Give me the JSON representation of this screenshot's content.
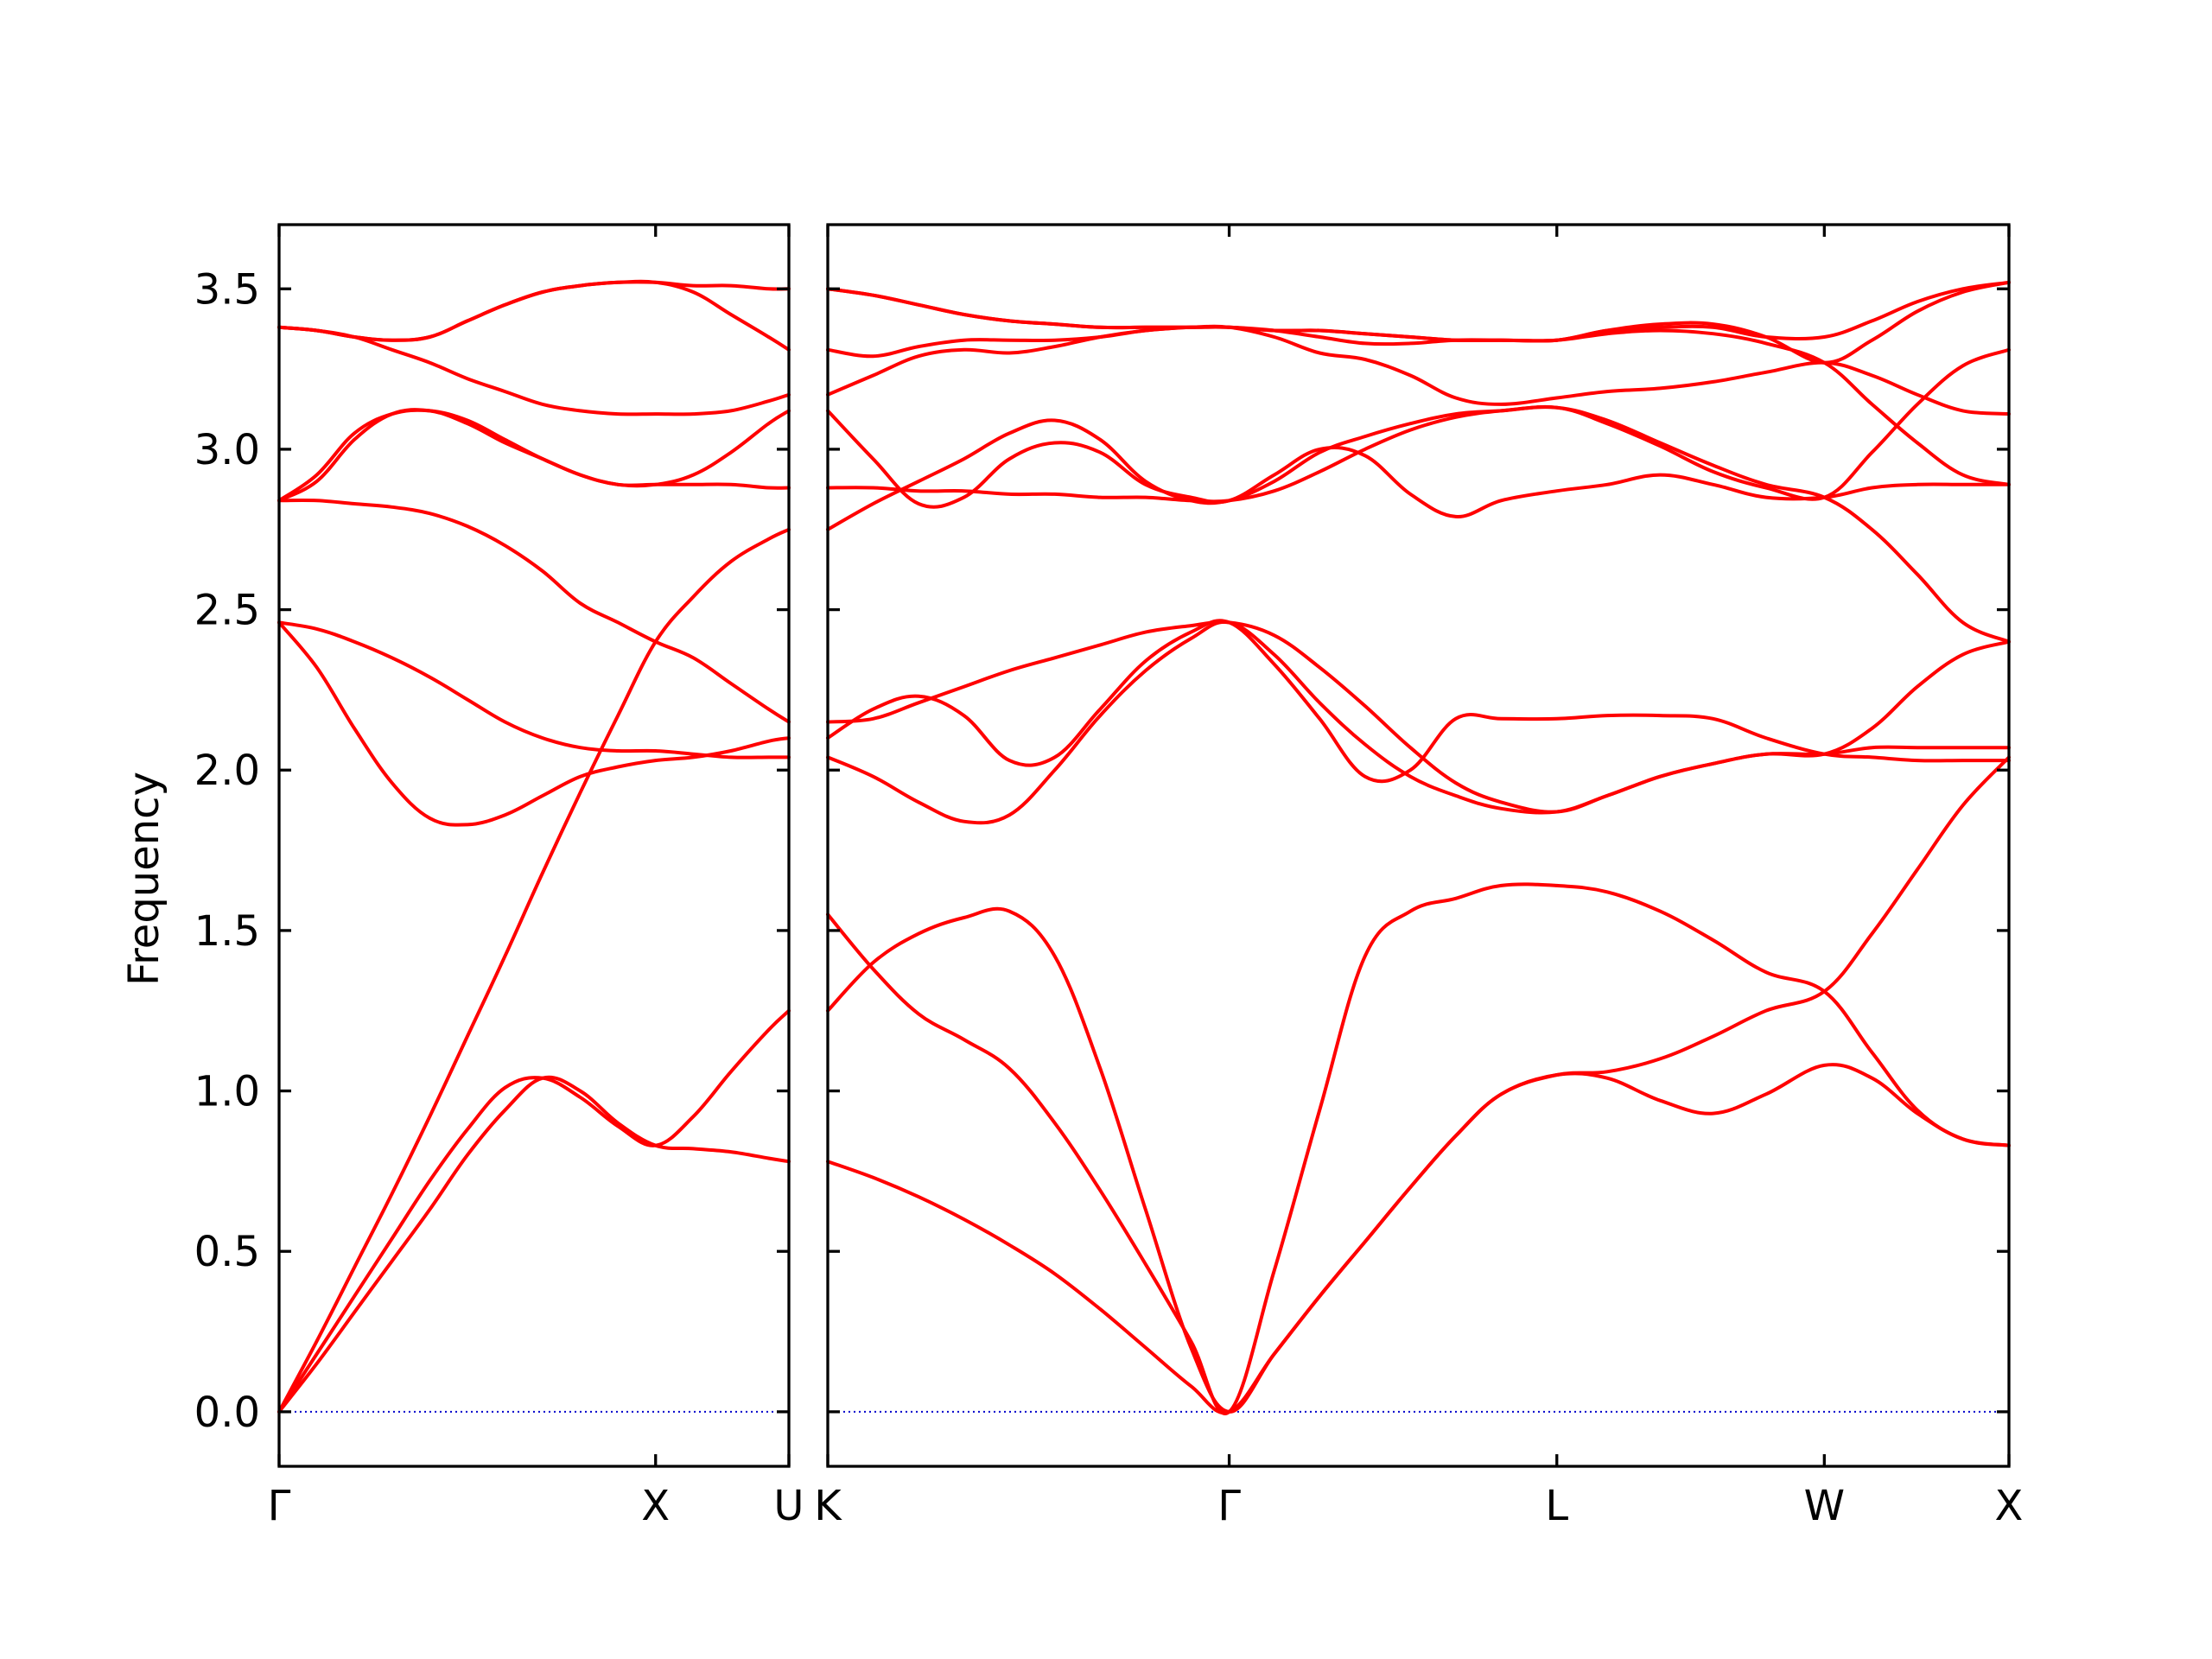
{
  "chart_data": {
    "type": "line",
    "ylabel": "Frequency",
    "ylim": [
      -0.17,
      3.7
    ],
    "y_ticks": [
      "0.0",
      "0.5",
      "1.0",
      "1.5",
      "2.0",
      "2.5",
      "3.0",
      "3.5"
    ],
    "grid": false,
    "colors": {
      "bands": "#ff0000",
      "zero_line": "#0000cc"
    },
    "panels": [
      {
        "x_range": [
          0,
          1.354
        ],
        "x_ticks": [
          {
            "x": 0,
            "label": "Γ"
          },
          {
            "x": 1.0,
            "label": "X"
          },
          {
            "x": 1.354,
            "label": "U"
          }
        ],
        "x": [
          0,
          0.1,
          0.2,
          0.3,
          0.4,
          0.5,
          0.6,
          0.7,
          0.8,
          0.9,
          1.0,
          1.1,
          1.2,
          1.3,
          1.354
        ],
        "bands": [
          [
            0.0,
            0.15,
            0.31,
            0.47,
            0.63,
            0.8,
            0.94,
            1.04,
            1.0,
            0.9,
            0.83,
            0.82,
            0.81,
            0.79,
            0.78
          ],
          [
            0.0,
            0.18,
            0.36,
            0.54,
            0.72,
            0.88,
            1.01,
            1.04,
            0.98,
            0.89,
            0.83,
            0.92,
            1.06,
            1.19,
            1.25
          ],
          [
            0.0,
            0.22,
            0.45,
            0.68,
            0.92,
            1.17,
            1.42,
            1.68,
            1.93,
            2.17,
            2.4,
            2.54,
            2.65,
            2.72,
            2.75
          ],
          [
            2.46,
            2.32,
            2.13,
            1.96,
            1.85,
            1.83,
            1.86,
            1.92,
            1.98,
            2.01,
            2.03,
            2.04,
            2.06,
            2.09,
            2.1
          ],
          [
            2.46,
            2.44,
            2.4,
            2.35,
            2.29,
            2.22,
            2.15,
            2.1,
            2.07,
            2.06,
            2.06,
            2.05,
            2.04,
            2.04,
            2.04
          ],
          [
            2.84,
            2.84,
            2.83,
            2.82,
            2.8,
            2.76,
            2.7,
            2.62,
            2.52,
            2.46,
            2.4,
            2.35,
            2.27,
            2.19,
            2.15
          ],
          [
            2.84,
            2.9,
            3.03,
            3.11,
            3.12,
            3.08,
            3.02,
            2.97,
            2.92,
            2.89,
            2.89,
            2.89,
            2.89,
            2.88,
            2.88
          ],
          [
            2.84,
            2.92,
            3.05,
            3.11,
            3.12,
            3.09,
            3.03,
            2.97,
            2.92,
            2.89,
            2.89,
            2.92,
            2.99,
            3.08,
            3.12
          ],
          [
            3.38,
            3.37,
            3.35,
            3.31,
            3.27,
            3.22,
            3.18,
            3.14,
            3.12,
            3.11,
            3.11,
            3.11,
            3.12,
            3.15,
            3.17
          ],
          [
            3.38,
            3.37,
            3.35,
            3.34,
            3.35,
            3.4,
            3.45,
            3.49,
            3.51,
            3.52,
            3.52,
            3.51,
            3.51,
            3.5,
            3.5
          ],
          [
            3.38,
            3.37,
            3.35,
            3.34,
            3.35,
            3.4,
            3.45,
            3.49,
            3.51,
            3.52,
            3.52,
            3.49,
            3.42,
            3.35,
            3.31
          ]
        ]
      },
      {
        "x_range": [
          0,
          3.122
        ],
        "x_ticks": [
          {
            "x": 0,
            "label": "K"
          },
          {
            "x": 1.061,
            "label": "Γ"
          },
          {
            "x": 1.927,
            "label": "L"
          },
          {
            "x": 2.634,
            "label": "W"
          },
          {
            "x": 3.122,
            "label": "X"
          }
        ],
        "x": [
          0,
          0.12,
          0.24,
          0.36,
          0.48,
          0.6,
          0.72,
          0.84,
          0.96,
          1.061,
          1.18,
          1.3,
          1.42,
          1.54,
          1.66,
          1.78,
          1.927,
          2.06,
          2.2,
          2.34,
          2.48,
          2.634,
          2.76,
          2.88,
          3.0,
          3.122
        ],
        "bands": [
          [
            0.78,
            0.73,
            0.67,
            0.6,
            0.52,
            0.43,
            0.32,
            0.2,
            0.08,
            0.0,
            0.18,
            0.36,
            0.53,
            0.7,
            0.86,
            0.99,
            1.05,
            1.04,
            0.97,
            0.93,
            0.99,
            1.08,
            1.04,
            0.93,
            0.85,
            0.83
          ],
          [
            1.55,
            1.38,
            1.24,
            1.16,
            1.07,
            0.9,
            0.69,
            0.46,
            0.22,
            0.0,
            0.44,
            0.94,
            1.42,
            1.56,
            1.6,
            1.64,
            1.64,
            1.62,
            1.56,
            1.47,
            1.37,
            1.31,
            1.12,
            0.94,
            0.85,
            0.83
          ],
          [
            1.25,
            1.4,
            1.49,
            1.54,
            1.56,
            1.42,
            1.07,
            0.63,
            0.2,
            0.0,
            0.18,
            0.36,
            0.53,
            0.7,
            0.86,
            0.99,
            1.05,
            1.06,
            1.1,
            1.17,
            1.25,
            1.31,
            1.49,
            1.69,
            1.89,
            2.04
          ],
          [
            2.04,
            1.98,
            1.9,
            1.84,
            1.86,
            2.0,
            2.17,
            2.31,
            2.41,
            2.46,
            2.36,
            2.21,
            2.08,
            1.98,
            1.92,
            1.88,
            1.87,
            1.92,
            1.98,
            2.02,
            2.05,
            2.05,
            2.07,
            2.07,
            2.07,
            2.07
          ],
          [
            2.1,
            2.19,
            2.23,
            2.17,
            2.03,
            2.04,
            2.19,
            2.34,
            2.43,
            2.46,
            2.33,
            2.16,
            1.98,
            2.0,
            2.16,
            2.16,
            2.16,
            2.17,
            2.17,
            2.16,
            2.1,
            2.05,
            2.04,
            2.03,
            2.03,
            2.03
          ],
          [
            2.15,
            2.16,
            2.21,
            2.26,
            2.31,
            2.35,
            2.39,
            2.43,
            2.45,
            2.46,
            2.42,
            2.32,
            2.2,
            2.07,
            1.96,
            1.9,
            1.87,
            1.92,
            1.98,
            2.02,
            2.05,
            2.05,
            2.13,
            2.26,
            2.36,
            2.4
          ],
          [
            2.88,
            2.88,
            2.87,
            2.87,
            2.86,
            2.86,
            2.85,
            2.85,
            2.84,
            2.84,
            2.87,
            2.93,
            3.0,
            3.06,
            3.1,
            3.12,
            3.13,
            3.09,
            3.02,
            2.95,
            2.89,
            2.85,
            2.75,
            2.61,
            2.46,
            2.4
          ],
          [
            3.12,
            2.97,
            2.83,
            2.85,
            2.97,
            3.02,
            2.99,
            2.89,
            2.85,
            2.84,
            2.92,
            3.0,
            2.98,
            2.86,
            2.79,
            2.84,
            2.87,
            2.89,
            2.92,
            2.89,
            2.85,
            2.85,
            2.88,
            2.89,
            2.89,
            2.89
          ],
          [
            2.75,
            2.83,
            2.9,
            2.97,
            3.05,
            3.09,
            3.03,
            2.9,
            2.84,
            2.84,
            2.9,
            2.99,
            3.04,
            3.08,
            3.11,
            3.12,
            3.13,
            3.08,
            3.01,
            2.93,
            2.88,
            2.85,
            2.99,
            3.14,
            3.26,
            3.31
          ],
          [
            3.17,
            3.23,
            3.29,
            3.31,
            3.3,
            3.32,
            3.35,
            3.37,
            3.38,
            3.38,
            3.35,
            3.3,
            3.28,
            3.23,
            3.16,
            3.14,
            3.16,
            3.18,
            3.19,
            3.21,
            3.24,
            3.27,
            3.23,
            3.17,
            3.12,
            3.11
          ],
          [
            3.31,
            3.29,
            3.32,
            3.34,
            3.34,
            3.34,
            3.35,
            3.37,
            3.38,
            3.38,
            3.37,
            3.35,
            3.33,
            3.33,
            3.34,
            3.34,
            3.34,
            3.36,
            3.37,
            3.36,
            3.33,
            3.27,
            3.14,
            3.02,
            2.92,
            2.89
          ],
          [
            3.5,
            3.48,
            3.45,
            3.42,
            3.4,
            3.39,
            3.38,
            3.38,
            3.38,
            3.38,
            3.37,
            3.37,
            3.36,
            3.35,
            3.34,
            3.34,
            3.34,
            3.37,
            3.39,
            3.39,
            3.35,
            3.27,
            3.34,
            3.43,
            3.49,
            3.52
          ],
          [
            3.5,
            3.48,
            3.45,
            3.42,
            3.4,
            3.39,
            3.38,
            3.38,
            3.38,
            3.38,
            3.37,
            3.37,
            3.36,
            3.35,
            3.34,
            3.34,
            3.34,
            3.37,
            3.38,
            3.38,
            3.35,
            3.35,
            3.4,
            3.46,
            3.5,
            3.52
          ]
        ]
      }
    ]
  }
}
